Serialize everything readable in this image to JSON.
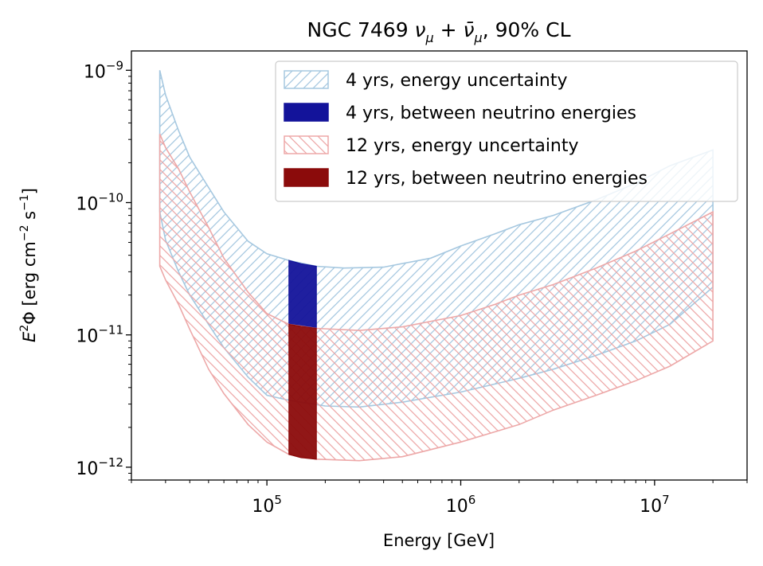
{
  "chart_data": {
    "type": "area",
    "title_parts": {
      "prefix": "NGC 7469 ",
      "nu": "ν",
      "mu": "μ",
      "plus": " + ",
      "nubar": "ν̄",
      "suffix": ", 90% CL"
    },
    "xlabel": "Energy [GeV]",
    "ylabel_parts": {
      "E": "E",
      "two": "2",
      "rest": "Φ [erg cm",
      "minus2": "−2",
      "s": " s",
      "minus1": "−1",
      "close": "]"
    },
    "x_scale": "log",
    "y_scale": "log",
    "xlim": [
      20000,
      30000000
    ],
    "ylim": [
      8e-13,
      1.4e-09
    ],
    "x_ticks": [
      {
        "value": 100000,
        "base": "10",
        "exp": "5"
      },
      {
        "value": 1000000,
        "base": "10",
        "exp": "6"
      },
      {
        "value": 10000000,
        "base": "10",
        "exp": "7"
      }
    ],
    "y_ticks": [
      {
        "value": 1e-12,
        "base": "10",
        "exp": "−12"
      },
      {
        "value": 1e-11,
        "base": "10",
        "exp": "−11"
      },
      {
        "value": 1e-10,
        "base": "10",
        "exp": "−10"
      },
      {
        "value": 1e-09,
        "base": "10",
        "exp": "−9"
      }
    ],
    "grid": false,
    "legend_position": "top-right",
    "series": [
      {
        "name": "4 yrs, energy uncertainty",
        "style": "hatch",
        "color": "#a6c8e0",
        "upper": [
          [
            28000,
            1e-09
          ],
          [
            30000,
            6.5e-10
          ],
          [
            35000,
            3.5e-10
          ],
          [
            40000,
            2.2e-10
          ],
          [
            50000,
            1.3e-10
          ],
          [
            60000,
            8.5e-11
          ],
          [
            80000,
            5.1e-11
          ],
          [
            100000,
            4.1e-11
          ],
          [
            130000,
            3.65e-11
          ],
          [
            180000,
            3.3e-11
          ],
          [
            250000,
            3.2e-11
          ],
          [
            400000,
            3.25e-11
          ],
          [
            700000,
            3.8e-11
          ],
          [
            1000000,
            4.7e-11
          ],
          [
            1500000,
            5.8e-11
          ],
          [
            2000000,
            6.8e-11
          ],
          [
            3000000,
            8e-11
          ],
          [
            5000000,
            1.05e-10
          ],
          [
            8000000,
            1.4e-10
          ],
          [
            12000000,
            1.9e-10
          ],
          [
            20000000,
            2.5e-10
          ]
        ],
        "lower": [
          [
            28000,
            8.5e-11
          ],
          [
            30000,
            5.2e-11
          ],
          [
            35000,
            3e-11
          ],
          [
            40000,
            2e-11
          ],
          [
            50000,
            1.2e-11
          ],
          [
            60000,
            8e-12
          ],
          [
            80000,
            4.8e-12
          ],
          [
            100000,
            3.5e-12
          ],
          [
            130000,
            3.2e-12
          ],
          [
            200000,
            2.9e-12
          ],
          [
            300000,
            2.85e-12
          ],
          [
            500000,
            3.1e-12
          ],
          [
            1000000,
            3.7e-12
          ],
          [
            2000000,
            4.7e-12
          ],
          [
            3000000,
            5.5e-12
          ],
          [
            5000000,
            7e-12
          ],
          [
            8000000,
            9e-12
          ],
          [
            12000000,
            1.2e-11
          ],
          [
            20000000,
            2.3e-11
          ]
        ]
      },
      {
        "name": "4 yrs, between neutrino energies",
        "style": "fill",
        "color": "#13139a",
        "upper": [
          [
            130000,
            3.65e-11
          ],
          [
            150000,
            3.45e-11
          ],
          [
            180000,
            3.3e-11
          ]
        ],
        "lower": [
          [
            130000,
            1.2e-11
          ],
          [
            150000,
            1.16e-11
          ],
          [
            180000,
            1.12e-11
          ]
        ]
      },
      {
        "name": "12 yrs, energy uncertainty",
        "style": "hatch",
        "color": "#eda8a8",
        "upper": [
          [
            28000,
            3.3e-10
          ],
          [
            30000,
            2.6e-10
          ],
          [
            35000,
            1.8e-10
          ],
          [
            40000,
            1.2e-10
          ],
          [
            50000,
            6.5e-11
          ],
          [
            60000,
            3.8e-11
          ],
          [
            80000,
            2.1e-11
          ],
          [
            100000,
            1.45e-11
          ],
          [
            130000,
            1.2e-11
          ],
          [
            180000,
            1.12e-11
          ],
          [
            300000,
            1.08e-11
          ],
          [
            500000,
            1.15e-11
          ],
          [
            1000000,
            1.4e-11
          ],
          [
            1500000,
            1.7e-11
          ],
          [
            2000000,
            2e-11
          ],
          [
            3000000,
            2.4e-11
          ],
          [
            5000000,
            3.2e-11
          ],
          [
            8000000,
            4.3e-11
          ],
          [
            12000000,
            5.8e-11
          ],
          [
            20000000,
            8.5e-11
          ]
        ],
        "lower": [
          [
            28000,
            3.3e-11
          ],
          [
            30000,
            2.6e-11
          ],
          [
            35000,
            1.7e-11
          ],
          [
            40000,
            1.1e-11
          ],
          [
            50000,
            5.5e-12
          ],
          [
            60000,
            3.6e-12
          ],
          [
            80000,
            2.1e-12
          ],
          [
            100000,
            1.55e-12
          ],
          [
            130000,
            1.25e-12
          ],
          [
            180000,
            1.15e-12
          ],
          [
            300000,
            1.12e-12
          ],
          [
            500000,
            1.2e-12
          ],
          [
            1000000,
            1.55e-12
          ],
          [
            2000000,
            2.1e-12
          ],
          [
            3000000,
            2.7e-12
          ],
          [
            5000000,
            3.5e-12
          ],
          [
            8000000,
            4.5e-12
          ],
          [
            12000000,
            5.8e-12
          ],
          [
            20000000,
            9e-12
          ]
        ]
      },
      {
        "name": "12 yrs, between neutrino energies",
        "style": "fill",
        "color": "#8b0b0b",
        "upper": [
          [
            130000,
            1.2e-11
          ],
          [
            150000,
            1.16e-11
          ],
          [
            180000,
            1.12e-11
          ]
        ],
        "lower": [
          [
            130000,
            1.25e-12
          ],
          [
            150000,
            1.18e-12
          ],
          [
            180000,
            1.15e-12
          ]
        ]
      }
    ]
  }
}
